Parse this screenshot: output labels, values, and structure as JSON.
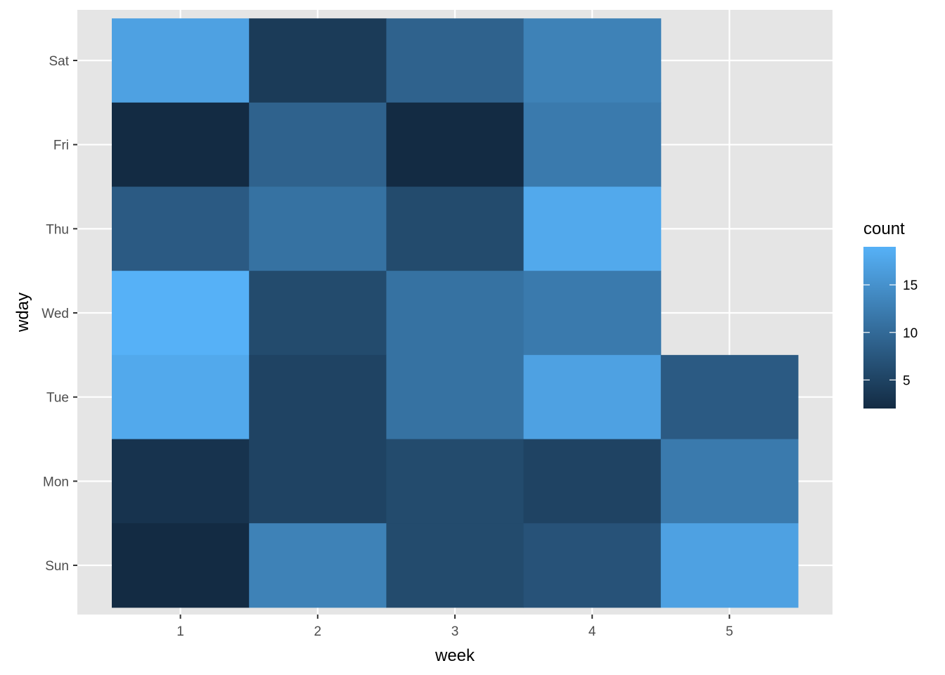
{
  "chart_data": {
    "type": "heatmap",
    "title": "",
    "xlabel": "week",
    "ylabel": "wday",
    "x_categories": [
      "1",
      "2",
      "3",
      "4",
      "5"
    ],
    "y_categories": [
      "Sun",
      "Mon",
      "Tue",
      "Wed",
      "Thu",
      "Fri",
      "Sat"
    ],
    "cells": [
      {
        "week": "1",
        "wday": "Sat",
        "count": 17
      },
      {
        "week": "2",
        "wday": "Sat",
        "count": 4
      },
      {
        "week": "3",
        "wday": "Sat",
        "count": 9
      },
      {
        "week": "4",
        "wday": "Sat",
        "count": 13
      },
      {
        "week": "1",
        "wday": "Fri",
        "count": 2
      },
      {
        "week": "2",
        "wday": "Fri",
        "count": 9
      },
      {
        "week": "3",
        "wday": "Fri",
        "count": 2
      },
      {
        "week": "4",
        "wday": "Fri",
        "count": 12
      },
      {
        "week": "1",
        "wday": "Thu",
        "count": 8
      },
      {
        "week": "2",
        "wday": "Thu",
        "count": 11
      },
      {
        "week": "3",
        "wday": "Thu",
        "count": 6
      },
      {
        "week": "4",
        "wday": "Thu",
        "count": 18
      },
      {
        "week": "1",
        "wday": "Wed",
        "count": 19
      },
      {
        "week": "2",
        "wday": "Wed",
        "count": 6
      },
      {
        "week": "3",
        "wday": "Wed",
        "count": 11
      },
      {
        "week": "4",
        "wday": "Wed",
        "count": 12
      },
      {
        "week": "1",
        "wday": "Tue",
        "count": 18
      },
      {
        "week": "2",
        "wday": "Tue",
        "count": 5
      },
      {
        "week": "3",
        "wday": "Tue",
        "count": 11
      },
      {
        "week": "4",
        "wday": "Tue",
        "count": 17
      },
      {
        "week": "5",
        "wday": "Tue",
        "count": 8
      },
      {
        "week": "1",
        "wday": "Mon",
        "count": 3
      },
      {
        "week": "2",
        "wday": "Mon",
        "count": 5
      },
      {
        "week": "3",
        "wday": "Mon",
        "count": 6
      },
      {
        "week": "4",
        "wday": "Mon",
        "count": 5
      },
      {
        "week": "5",
        "wday": "Mon",
        "count": 12
      },
      {
        "week": "1",
        "wday": "Sun",
        "count": 2
      },
      {
        "week": "2",
        "wday": "Sun",
        "count": 13
      },
      {
        "week": "3",
        "wday": "Sun",
        "count": 6
      },
      {
        "week": "4",
        "wday": "Sun",
        "count": 7
      },
      {
        "week": "5",
        "wday": "Sun",
        "count": 17
      }
    ],
    "legend": {
      "title": "count",
      "placement": "right",
      "range": [
        2,
        19
      ],
      "ticks": [
        5,
        10,
        15
      ],
      "low_color": "#132B43",
      "high_color": "#56B1F7"
    },
    "panel_background": "#e5e5e5",
    "grid": true,
    "grid_color": "#ffffff"
  }
}
